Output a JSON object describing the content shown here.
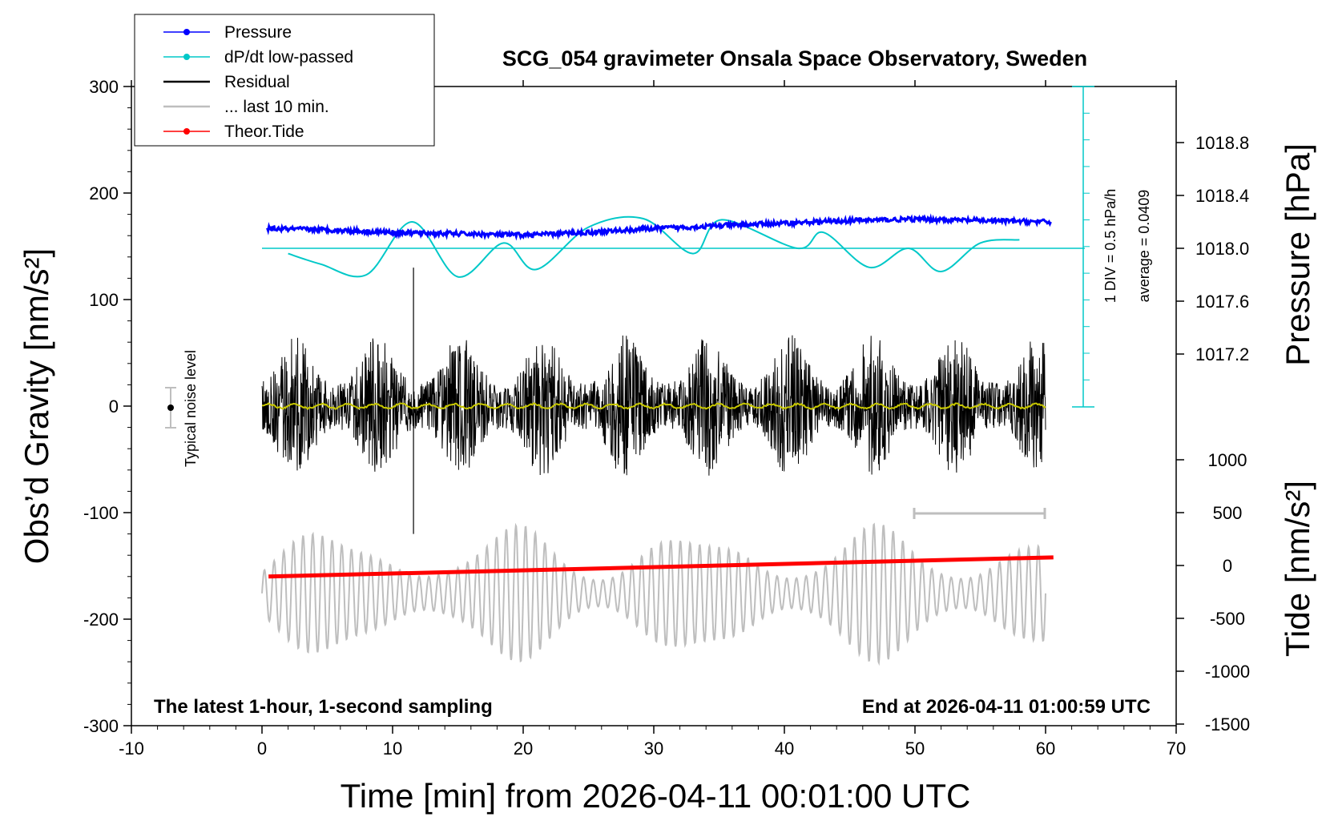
{
  "chart_data": {
    "type": "line",
    "title": "SCG_054 gravimeter Onsala Space Observatory, Sweden",
    "xlabel": "Time [min] from 2026-04-11 00:01:00 UTC",
    "ylabel_left": "Obs’d Gravity [nm/s²]",
    "ylabel_right_top": "Pressure [hPa]",
    "ylabel_right_bottom": "Tide [nm/s²]",
    "x_range": [
      -10,
      70
    ],
    "x_ticks": [
      "-10",
      "0",
      "10",
      "20",
      "30",
      "40",
      "50",
      "60",
      "70"
    ],
    "y_left_range": [
      -300,
      300
    ],
    "y_left_ticks": [
      "300",
      "200",
      "100",
      "0",
      "-100",
      "-200",
      "-300"
    ],
    "pressure_range": [
      1017.0,
      1019.0
    ],
    "pressure_ticks": [
      "1018.8",
      "1018.4",
      "1018.0",
      "1017.6",
      "1017.2"
    ],
    "tide_range": [
      -1500,
      1000
    ],
    "tide_ticks": [
      "1000",
      "500",
      "0",
      "-500",
      "-1000",
      "-1500"
    ],
    "legend": [
      {
        "label": "Pressure",
        "color": "#0000ff",
        "style": "line-dot"
      },
      {
        "label": "dP/dt low-passed",
        "color": "#00c8c8",
        "style": "line-dot"
      },
      {
        "label": "Residual",
        "color": "#000000",
        "style": "line"
      },
      {
        "label": "... last 10 min.",
        "color": "#bebebe",
        "style": "line"
      },
      {
        "label": "Theor.Tide",
        "color": "#ff0000",
        "style": "line-dot"
      }
    ],
    "series": [
      {
        "name": "Pressure",
        "unit": "hPa",
        "x": [
          0,
          5,
          10,
          15,
          20,
          25,
          30,
          35,
          40,
          45,
          50,
          55,
          60
        ],
        "values": [
          1018.15,
          1018.14,
          1018.12,
          1018.11,
          1018.1,
          1018.12,
          1018.15,
          1018.17,
          1018.19,
          1018.21,
          1018.22,
          1018.21,
          1018.2
        ]
      },
      {
        "name": "dP/dt low-passed",
        "unit": "hPa/h",
        "x": [
          2,
          4.5,
          8,
          11.5,
          15,
          18.5,
          21,
          25,
          29.2,
          33,
          35.2,
          41,
          43,
          46.5,
          49.5,
          52,
          55,
          58
        ],
        "values": [
          -0.05,
          -0.15,
          -0.25,
          0.25,
          -0.27,
          0.05,
          -0.2,
          0.2,
          0.28,
          -0.05,
          0.27,
          0.0,
          0.15,
          -0.18,
          -0.0,
          -0.22,
          0.05,
          0.08
        ]
      },
      {
        "name": "Residual",
        "unit": "nm/s²",
        "x": [
          0,
          60
        ],
        "envelope_abs": 60,
        "max": 130,
        "min": -125
      },
      {
        "name": "Theor.Tide",
        "unit": "nm/s²",
        "x": [
          0,
          60
        ],
        "values": [
          -80,
          60
        ]
      },
      {
        "name": "... last 10 min.",
        "unit": "nm/s²",
        "x_range": [
          0,
          60
        ],
        "amplitude_max": 1200
      }
    ],
    "pressure_scale_note": "1 DIV = 0.5 hPa/h",
    "pressure_average_note": "average = 0.0409",
    "noise_label": "Typical noise level",
    "footnote_left": "The latest 1-hour, 1-second sampling",
    "footnote_right": "End at 2026-04-11 01:00:59 UTC",
    "colors": {
      "pressure": "#0000ff",
      "dpdt": "#00c8c8",
      "residual": "#000000",
      "smoothed": "#c8c800",
      "last10": "#bebebe",
      "tide": "#ff0000"
    }
  }
}
